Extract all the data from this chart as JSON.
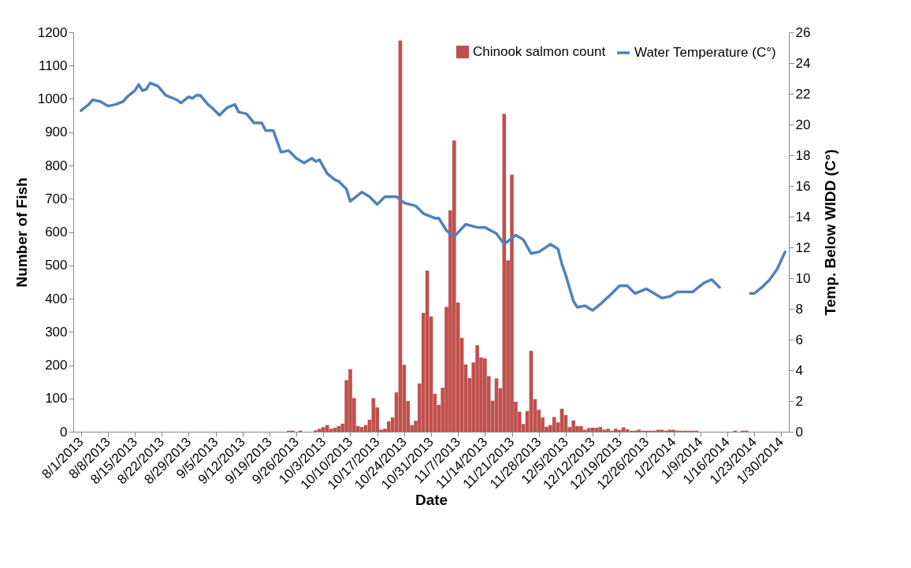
{
  "chart_data": {
    "type": "bar",
    "xlabel": "Date",
    "ylabel": "Number of Fish",
    "y2label": "Temp. Below WIDD (C°)",
    "xlim": [
      "2013-07-30",
      "2014-02-01"
    ],
    "xticks": [
      {
        "value": "2013-08-01",
        "label": "8/1/2013"
      },
      {
        "value": "2013-08-08",
        "label": "8/8/2013"
      },
      {
        "value": "2013-08-15",
        "label": "8/15/2013"
      },
      {
        "value": "2013-08-22",
        "label": "8/22/2013"
      },
      {
        "value": "2013-08-29",
        "label": "8/29/2013"
      },
      {
        "value": "2013-09-05",
        "label": "9/5/2013"
      },
      {
        "value": "2013-09-12",
        "label": "9/12/2013"
      },
      {
        "value": "2013-09-19",
        "label": "9/19/2013"
      },
      {
        "value": "2013-09-26",
        "label": "9/26/2013"
      },
      {
        "value": "2013-10-03",
        "label": "10/3/2013"
      },
      {
        "value": "2013-10-10",
        "label": "10/10/2013"
      },
      {
        "value": "2013-10-17",
        "label": "10/17/2013"
      },
      {
        "value": "2013-10-24",
        "label": "10/24/2013"
      },
      {
        "value": "2013-10-31",
        "label": "10/31/2013"
      },
      {
        "value": "2013-11-07",
        "label": "11/7/2013"
      },
      {
        "value": "2013-11-14",
        "label": "11/14/2013"
      },
      {
        "value": "2013-11-21",
        "label": "11/21/2013"
      },
      {
        "value": "2013-11-28",
        "label": "11/28/2013"
      },
      {
        "value": "2013-12-05",
        "label": "12/5/2013"
      },
      {
        "value": "2013-12-12",
        "label": "12/12/2013"
      },
      {
        "value": "2013-12-19",
        "label": "12/19/2013"
      },
      {
        "value": "2013-12-26",
        "label": "12/26/2013"
      },
      {
        "value": "2014-01-02",
        "label": "1/2/2014"
      },
      {
        "value": "2014-01-09",
        "label": "1/9/2014"
      },
      {
        "value": "2014-01-16",
        "label": "1/16/2014"
      },
      {
        "value": "2014-01-23",
        "label": "1/23/2014"
      },
      {
        "value": "2014-01-30",
        "label": "1/30/2014"
      }
    ],
    "ylim": [
      0,
      1200
    ],
    "yticks": [
      0,
      100,
      200,
      300,
      400,
      500,
      600,
      700,
      800,
      900,
      1000,
      1100,
      1200
    ],
    "y2lim": [
      0,
      26
    ],
    "y2ticks": [
      0,
      2,
      4,
      6,
      8,
      10,
      12,
      14,
      16,
      18,
      20,
      22,
      24,
      26
    ],
    "grid": false,
    "legend": "top right",
    "series": [
      {
        "name": "Chinook salmon count",
        "color": "#c0504d",
        "x": [
          "2013-09-24",
          "2013-09-25",
          "2013-09-27",
          "2013-10-01",
          "2013-10-02",
          "2013-10-03",
          "2013-10-04",
          "2013-10-05",
          "2013-10-06",
          "2013-10-07",
          "2013-10-08",
          "2013-10-09",
          "2013-10-10",
          "2013-10-11",
          "2013-10-12",
          "2013-10-13",
          "2013-10-14",
          "2013-10-15",
          "2013-10-16",
          "2013-10-17",
          "2013-10-18",
          "2013-10-19",
          "2013-10-20",
          "2013-10-21",
          "2013-10-22",
          "2013-10-23",
          "2013-10-24",
          "2013-10-25",
          "2013-10-26",
          "2013-10-27",
          "2013-10-28",
          "2013-10-29",
          "2013-10-30",
          "2013-10-31",
          "2013-11-01",
          "2013-11-02",
          "2013-11-03",
          "2013-11-04",
          "2013-11-05",
          "2013-11-06",
          "2013-11-07",
          "2013-11-08",
          "2013-11-09",
          "2013-11-10",
          "2013-11-11",
          "2013-11-12",
          "2013-11-13",
          "2013-11-14",
          "2013-11-15",
          "2013-11-16",
          "2013-11-17",
          "2013-11-18",
          "2013-11-19",
          "2013-11-20",
          "2013-11-21",
          "2013-11-22",
          "2013-11-23",
          "2013-11-24",
          "2013-11-25",
          "2013-11-26",
          "2013-11-27",
          "2013-11-28",
          "2013-11-29",
          "2013-11-30",
          "2013-12-01",
          "2013-12-02",
          "2013-12-03",
          "2013-12-04",
          "2013-12-05",
          "2013-12-06",
          "2013-12-07",
          "2013-12-08",
          "2013-12-09",
          "2013-12-10",
          "2013-12-11",
          "2013-12-12",
          "2013-12-13",
          "2013-12-14",
          "2013-12-15",
          "2013-12-16",
          "2013-12-17",
          "2013-12-18",
          "2013-12-19",
          "2013-12-20",
          "2013-12-21",
          "2013-12-22",
          "2013-12-23",
          "2013-12-24",
          "2013-12-25",
          "2013-12-26",
          "2013-12-27",
          "2013-12-28",
          "2013-12-29",
          "2013-12-30",
          "2013-12-31",
          "2014-01-01",
          "2014-01-02",
          "2014-01-03",
          "2014-01-04",
          "2014-01-05",
          "2014-01-06",
          "2014-01-07",
          "2014-01-08",
          "2014-01-18",
          "2014-01-20",
          "2014-01-21"
        ],
        "values": [
          3,
          3,
          3,
          4,
          9,
          14,
          20,
          9,
          12,
          17,
          24,
          155,
          188,
          101,
          17,
          14,
          20,
          36,
          101,
          73,
          6,
          9,
          31,
          43,
          118,
          1175,
          201,
          92,
          20,
          33,
          145,
          357,
          484,
          346,
          114,
          81,
          132,
          375,
          665,
          875,
          388,
          282,
          202,
          161,
          208,
          260,
          223,
          220,
          167,
          93,
          160,
          131,
          955,
          515,
          772,
          90,
          60,
          23,
          62,
          243,
          98,
          66,
          43,
          15,
          20,
          44,
          28,
          69,
          50,
          14,
          34,
          17,
          17,
          6,
          11,
          12,
          12,
          14,
          6,
          9,
          3,
          9,
          5,
          13,
          7,
          3,
          3,
          6,
          3,
          3,
          3,
          3,
          6,
          6,
          3,
          6,
          6,
          3,
          3,
          3,
          3,
          3,
          3,
          3,
          3,
          3
        ]
      },
      {
        "name": "Water Temperature (C°)",
        "type": "line",
        "axis": "y2",
        "color": "#4f81bd",
        "x": [
          "2013-08-01",
          "2013-08-03",
          "2013-08-04",
          "2013-08-06",
          "2013-08-08",
          "2013-08-10",
          "2013-08-12",
          "2013-08-13",
          "2013-08-15",
          "2013-08-16",
          "2013-08-17",
          "2013-08-18",
          "2013-08-19",
          "2013-08-21",
          "2013-08-23",
          "2013-08-25",
          "2013-08-26",
          "2013-08-27",
          "2013-08-29",
          "2013-08-30",
          "2013-08-31",
          "2013-09-01",
          "2013-09-03",
          "2013-09-04",
          "2013-09-06",
          "2013-09-08",
          "2013-09-10",
          "2013-09-11",
          "2013-09-13",
          "2013-09-15",
          "2013-09-17",
          "2013-09-18",
          "2013-09-20",
          "2013-09-22",
          "2013-09-24",
          "2013-09-26",
          "2013-09-28",
          "2013-09-30",
          "2013-10-01",
          "2013-10-02",
          "2013-10-04",
          "2013-10-06",
          "2013-10-07",
          "2013-10-09",
          "2013-10-10",
          "2013-10-13",
          "2013-10-15",
          "2013-10-17",
          "2013-10-19",
          "2013-10-22",
          "2013-10-24",
          "2013-10-27",
          "2013-10-29",
          "2013-11-01",
          "2013-11-02",
          "2013-11-04",
          "2013-11-06",
          "2013-11-09",
          "2013-11-12",
          "2013-11-14",
          "2013-11-17",
          "2013-11-19",
          "2013-11-22",
          "2013-11-24",
          "2013-11-26",
          "2013-11-28",
          "2013-12-01",
          "2013-12-03",
          "2013-12-04",
          "2013-12-05",
          "2013-12-07",
          "2013-12-08",
          "2013-12-10",
          "2013-12-12",
          "2013-12-14",
          "2013-12-17",
          "2013-12-19",
          "2013-12-21",
          "2013-12-23",
          "2013-12-26",
          "2013-12-30",
          "2014-01-01",
          "2014-01-03",
          "2014-01-07",
          "2014-01-08",
          "2014-01-10",
          "2014-01-12",
          "2014-01-14",
          "2014-01-18",
          "2014-01-22",
          "2014-01-23",
          "2014-01-25",
          "2014-01-27",
          "2014-01-29",
          "2014-01-31"
        ],
        "values": [
          20.9,
          21.3,
          21.6,
          21.5,
          21.2,
          21.3,
          21.5,
          21.8,
          22.2,
          22.6,
          22.2,
          22.3,
          22.7,
          22.5,
          21.9,
          21.7,
          21.6,
          21.4,
          21.8,
          21.7,
          21.9,
          21.9,
          21.3,
          21.1,
          20.6,
          21.1,
          21.3,
          20.8,
          20.7,
          20.1,
          20.1,
          19.6,
          19.6,
          18.2,
          18.3,
          17.8,
          17.5,
          17.8,
          17.6,
          17.7,
          16.8,
          16.4,
          16.3,
          15.8,
          15.0,
          15.6,
          15.3,
          14.8,
          15.3,
          15.3,
          14.9,
          14.7,
          14.2,
          13.9,
          13.9,
          13.1,
          12.7,
          13.5,
          13.3,
          13.3,
          12.9,
          12.2,
          12.8,
          12.5,
          11.6,
          11.7,
          12.2,
          11.9,
          10.9,
          10.2,
          8.5,
          8.1,
          8.2,
          7.9,
          8.3,
          9.0,
          9.5,
          9.5,
          9.0,
          9.3,
          8.7,
          8.8,
          9.1,
          9.1,
          9.3,
          9.7,
          9.9,
          9.4,
          null,
          9.0,
          9.0,
          9.4,
          9.9,
          10.6,
          11.7
        ]
      }
    ]
  }
}
